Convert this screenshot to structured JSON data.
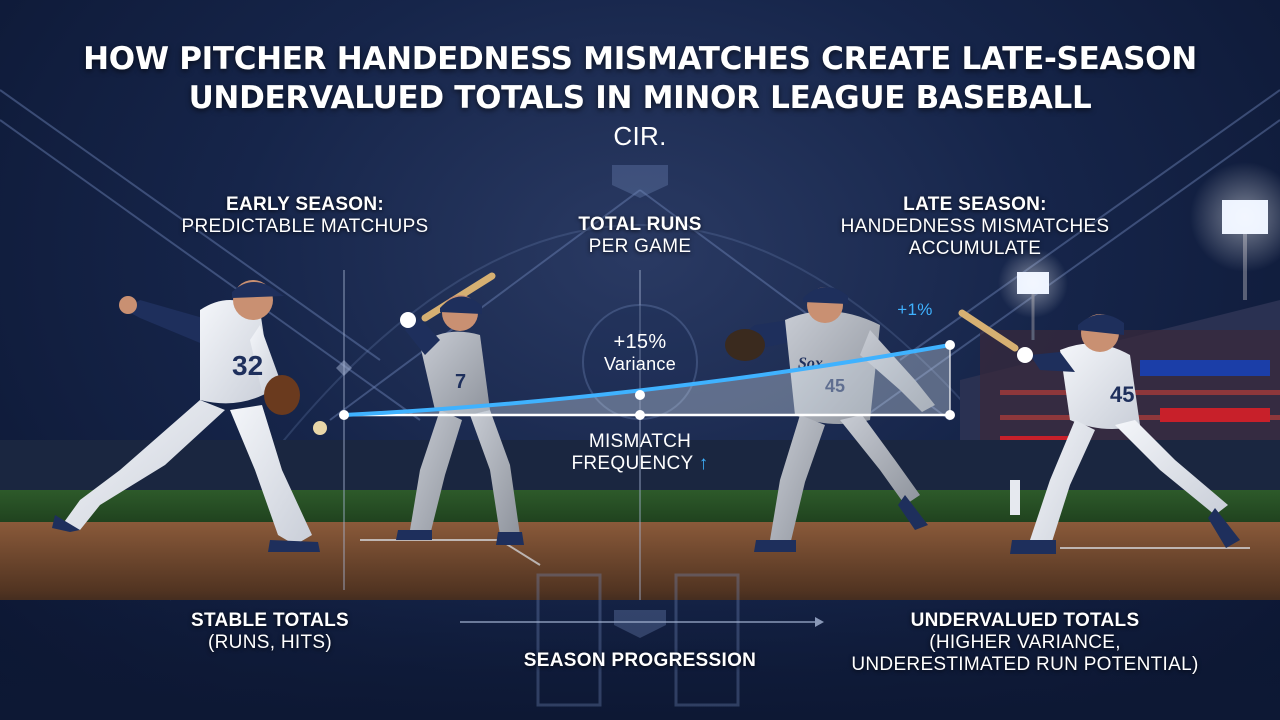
{
  "header": {
    "title_line1": "HOW PITCHER HANDEDNESS MISMATCHES CREATE LATE-SEASON",
    "title_line2": "UNDERVALUED TOTALS IN MINOR LEAGUE BASEBALL",
    "subtitle": "CIR."
  },
  "left_panel": {
    "heading": "EARLY SEASON:",
    "subheading": "PREDICTABLE MATCHUPS",
    "footer_heading": "STABLE TOTALS",
    "footer_sub": "(RUNS, HITS)",
    "pitcher_number": "32",
    "batter_number": "7"
  },
  "right_panel": {
    "heading": "LATE SEASON:",
    "subheading_line1": "HANDEDNESS MISMATCHES",
    "subheading_line2": "ACCUMULATE",
    "footer_heading": "UNDERVALUED TOTALS",
    "footer_sub_line1": "(HIGHER VARIANCE,",
    "footer_sub_line2": "UNDERESTIMATED RUN POTENTIAL)",
    "pitcher_number": "45",
    "batter_number": "45"
  },
  "center": {
    "metric_line1": "TOTAL RUNS",
    "metric_line2": "PER GAME",
    "variance_value": "+15%",
    "variance_label": "Variance",
    "mismatch_line1": "MISMATCH",
    "mismatch_line2": "FREQUENCY",
    "mismatch_arrow": "↑",
    "trend_annotation": "+1%",
    "axis_label": "SEASON PROGRESSION"
  },
  "colors": {
    "background": "#16254a",
    "trend_line": "#3fb2ff",
    "accent": "#3fb2ff",
    "text": "#ffffff"
  }
}
